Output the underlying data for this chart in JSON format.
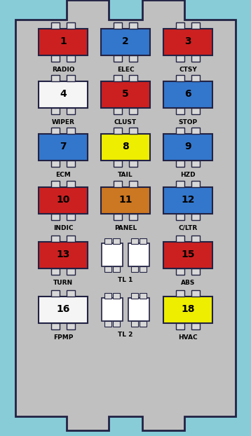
{
  "bg_outer": "#88ccd8",
  "bg_panel": "#c0c0c0",
  "panel_border": "#222244",
  "fig_w": 358,
  "fig_h": 622,
  "fuses": [
    {
      "num": "1",
      "label": "RADIO",
      "color": "#cc2020",
      "col": 0,
      "row": 0
    },
    {
      "num": "2",
      "label": "ELEC",
      "color": "#3377cc",
      "col": 1,
      "row": 0
    },
    {
      "num": "3",
      "label": "CTSY",
      "color": "#cc2020",
      "col": 2,
      "row": 0
    },
    {
      "num": "4",
      "label": "WIPER",
      "color": "#f5f5f5",
      "col": 0,
      "row": 1
    },
    {
      "num": "5",
      "label": "CLUST",
      "color": "#cc2020",
      "col": 1,
      "row": 1
    },
    {
      "num": "6",
      "label": "STOP",
      "color": "#3377cc",
      "col": 2,
      "row": 1
    },
    {
      "num": "7",
      "label": "ECM",
      "color": "#3377cc",
      "col": 0,
      "row": 2
    },
    {
      "num": "8",
      "label": "TAIL",
      "color": "#eeee00",
      "col": 1,
      "row": 2
    },
    {
      "num": "9",
      "label": "HZD",
      "color": "#3377cc",
      "col": 2,
      "row": 2
    },
    {
      "num": "10",
      "label": "INDIC",
      "color": "#cc2020",
      "col": 0,
      "row": 3
    },
    {
      "num": "11",
      "label": "PANEL",
      "color": "#cc7722",
      "col": 1,
      "row": 3
    },
    {
      "num": "12",
      "label": "C/LTR",
      "color": "#3377cc",
      "col": 2,
      "row": 3
    },
    {
      "num": "13",
      "label": "TURN",
      "color": "#cc2020",
      "col": 0,
      "row": 4
    },
    {
      "num": "15",
      "label": "ABS",
      "color": "#cc2020",
      "col": 2,
      "row": 4
    },
    {
      "num": "16",
      "label": "FPMP",
      "color": "#f5f5f5",
      "col": 0,
      "row": 5
    },
    {
      "num": "18",
      "label": "HVAC",
      "color": "#eeee00",
      "col": 2,
      "row": 5
    }
  ],
  "blanks": [
    {
      "label": "TL 1",
      "col": 1,
      "row": 4
    },
    {
      "label": "TL 2",
      "col": 1,
      "row": 5
    }
  ]
}
